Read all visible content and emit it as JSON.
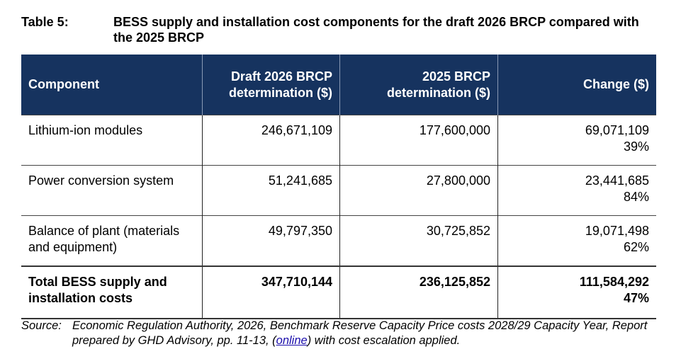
{
  "caption": {
    "label": "Table 5:",
    "title": "BESS supply and installation cost components for the draft 2026 BRCP compared with the 2025 BRCP"
  },
  "table": {
    "headers": [
      "Component",
      "Draft 2026 BRCP determination ($)",
      "2025 BRCP determination ($)",
      "Change ($)"
    ],
    "rows": [
      {
        "component": "Lithium-ion modules",
        "draft": "246,671,109",
        "prior": "177,600,000",
        "change": "69,071,109",
        "pct": "39%"
      },
      {
        "component": "Power conversion system",
        "draft": "51,241,685",
        "prior": "27,800,000",
        "change": "23,441,685",
        "pct": "84%"
      },
      {
        "component": "Balance of plant (materials and equipment)",
        "draft": "49,797,350",
        "prior": "30,725,852",
        "change": "19,071,498",
        "pct": "62%"
      }
    ],
    "total": {
      "component": "Total BESS supply and installation costs",
      "draft": "347,710,144",
      "prior": "236,125,852",
      "change": "111,584,292",
      "pct": "47%"
    }
  },
  "source": {
    "label": "Source:",
    "text1": "Economic Regulation Authority, 2026, Benchmark Reserve Capacity Price costs 2028/29 Capacity Year, Report prepared by GHD Advisory, pp. 11-13, (",
    "link": "online",
    "text2": ") with cost escalation applied."
  }
}
